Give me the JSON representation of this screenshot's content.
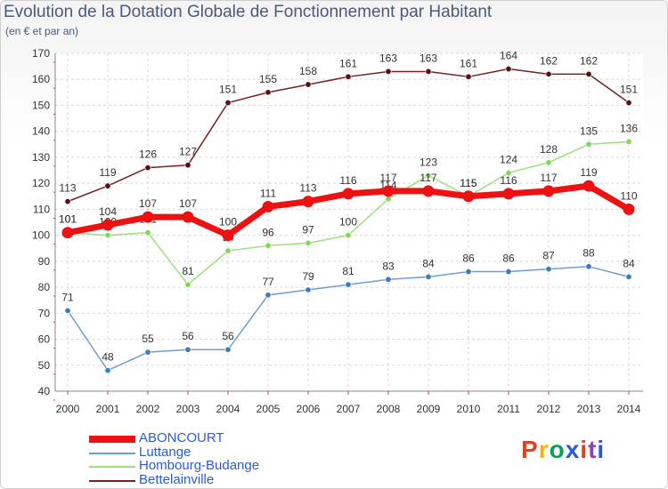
{
  "header": {
    "title": "Evolution de la Dotation Globale de Fonctionnement par Habitant",
    "subtitle": "(en € et par an)"
  },
  "logo": {
    "text": "Proxiti",
    "colors": [
      "#e2431e",
      "#f4b400",
      "#0f9d58",
      "#2a5bd7",
      "#e2431e",
      "#8e44ad",
      "#2a5bd7"
    ]
  },
  "chart_data": {
    "type": "line",
    "title": "Evolution de la Dotation Globale de Fonctionnement par Habitant",
    "subtitle": "(en € et par an)",
    "xlabel": "",
    "ylabel": "",
    "ylim": [
      40,
      170
    ],
    "yticks": [
      40,
      50,
      60,
      70,
      80,
      90,
      100,
      110,
      120,
      130,
      140,
      150,
      160,
      170
    ],
    "grid": true,
    "legend_position": "bottom-left",
    "categories": [
      "2000",
      "2001",
      "2002",
      "2003",
      "2004",
      "2005",
      "2006",
      "2007",
      "2008",
      "2009",
      "2010",
      "2011",
      "2012",
      "2013",
      "2014"
    ],
    "series": [
      {
        "name": "Bettelainville",
        "color": "#7a1e1e",
        "marker": "#5a1010",
        "values": [
          113,
          119,
          126,
          127,
          151,
          155,
          158,
          161,
          163,
          163,
          161,
          164,
          162,
          162,
          151
        ]
      },
      {
        "name": "Hombourg-Budange",
        "color": "#9be07a",
        "marker": "#7ed957",
        "values": [
          101,
          100,
          101,
          81,
          94,
          96,
          97,
          100,
          114,
          123,
          115,
          124,
          128,
          135,
          136
        ]
      },
      {
        "name": "Luttange",
        "color": "#6a9fd1",
        "marker": "#3a7cc2",
        "values": [
          71,
          48,
          55,
          56,
          56,
          77,
          79,
          81,
          83,
          84,
          86,
          86,
          87,
          88,
          84
        ]
      },
      {
        "name": "ABONCOURT",
        "color": "#ee1111",
        "marker": "#ee1111",
        "values": [
          101,
          104,
          107,
          107,
          100,
          111,
          113,
          116,
          117,
          117,
          115,
          116,
          117,
          119,
          110
        ]
      }
    ],
    "legend_order": [
      "ABONCOURT",
      "Luttange",
      "Hombourg-Budange",
      "Bettelainville"
    ]
  }
}
